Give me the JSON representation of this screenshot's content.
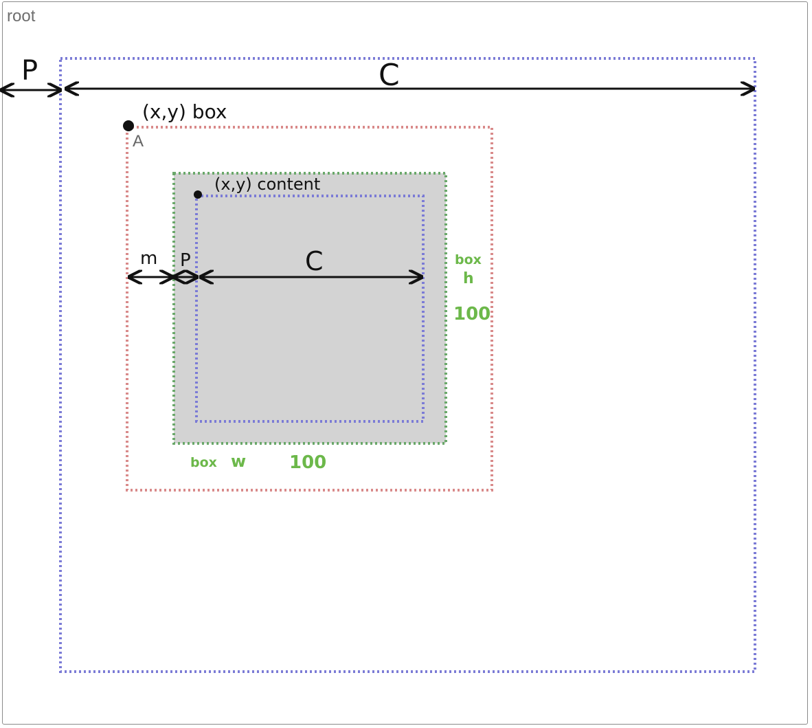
{
  "root": {
    "label": "root"
  },
  "outer_content": {
    "padding_label": "P",
    "content_label": "C"
  },
  "box_a": {
    "label": "A",
    "box_origin_label": "(x,y) box",
    "content_origin_label": "(x,y) content",
    "margin_label": "m",
    "padding_label": "P",
    "content_label": "C",
    "box_h_label_line1": "box",
    "box_h_label_line2": "h",
    "box_h_value": "100",
    "box_w_label": "box",
    "box_w_symbol": "w",
    "box_w_value": "100"
  },
  "colors": {
    "padding_outline": "#7b7bd6",
    "margin_outline": "#d98a8a",
    "border_outline": "#6aa86a",
    "box_fill": "#d3d3d3",
    "annotation": "#111111",
    "annotation_green": "#6cb84a"
  }
}
